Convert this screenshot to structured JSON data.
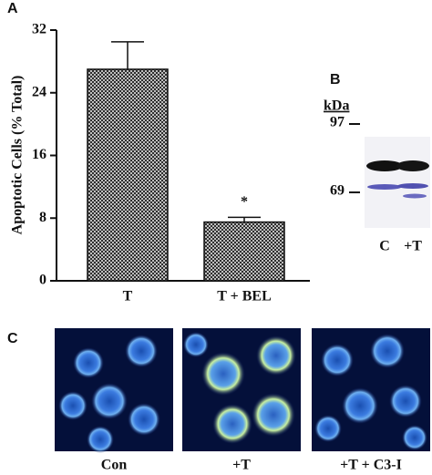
{
  "chart_data": {
    "type": "bar",
    "panel_label": "A",
    "y_label": "Apoptotic Cells (% Total)",
    "categories": [
      "T",
      "T + BEL"
    ],
    "values": [
      27,
      7.5
    ],
    "errors": [
      3.5,
      0.6
    ],
    "annotations": [
      {
        "category_index": 1,
        "text": "*"
      }
    ],
    "color": "#222222",
    "ylim": [
      0,
      32
    ],
    "yticks": [
      0,
      8,
      16,
      24,
      32
    ]
  },
  "panel_b": {
    "label": "B",
    "unit": "kDa",
    "markers": [
      "97",
      "69"
    ],
    "lanes": [
      "C",
      "+T"
    ]
  },
  "panel_c": {
    "label": "C",
    "images": [
      "Con",
      "+T",
      "+T + C3-I"
    ]
  }
}
